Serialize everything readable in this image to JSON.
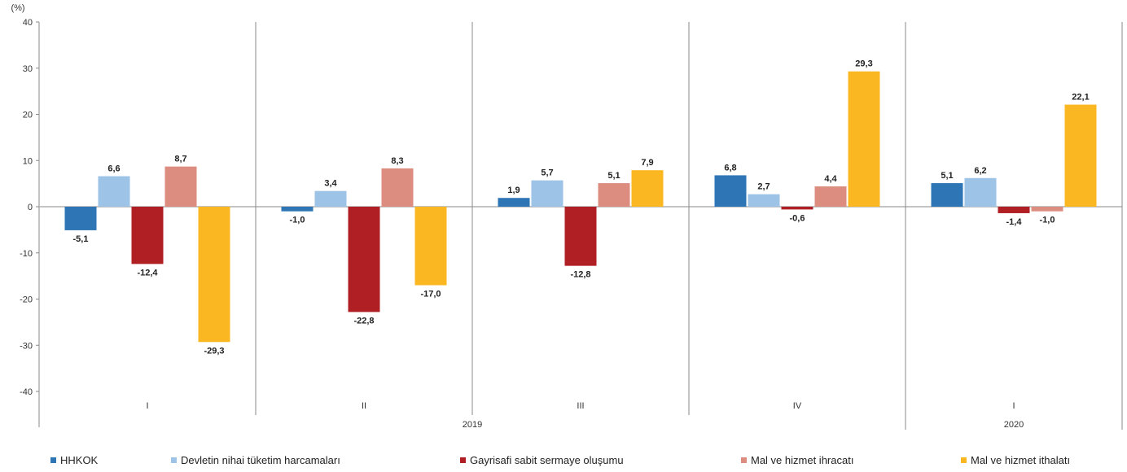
{
  "chart_data": {
    "type": "bar",
    "ylabel": "(%)",
    "ylim": [
      -40,
      40
    ],
    "yticks": [
      40,
      30,
      20,
      10,
      0,
      -10,
      -20,
      -30,
      -40
    ],
    "grid": false,
    "legend_position": "bottom",
    "categories": [
      "I",
      "II",
      "III",
      "IV",
      "I"
    ],
    "years": [
      {
        "label": "2019",
        "span": [
          0,
          3
        ]
      },
      {
        "label": "2020",
        "span": [
          4,
          4
        ]
      }
    ],
    "series": [
      {
        "name": "HHKOK",
        "color": "#2e75b6",
        "values": [
          -5.1,
          -1.0,
          1.9,
          6.8,
          5.1
        ],
        "labels": [
          "-5,1",
          "-1,0",
          "1,9",
          "6,8",
          "5,1"
        ]
      },
      {
        "name": "Devletin nihai tüketim harcamaları",
        "color": "#9dc3e6",
        "values": [
          6.6,
          3.4,
          5.7,
          2.7,
          6.2
        ],
        "labels": [
          "6,6",
          "3,4",
          "5,7",
          "2,7",
          "6,2"
        ]
      },
      {
        "name": "Gayrisafi sabit sermaye oluşumu",
        "color": "#b01f24",
        "values": [
          -12.4,
          -22.8,
          -12.8,
          -0.6,
          -1.4
        ],
        "labels": [
          "-12,4",
          "-22,8",
          "-12,8",
          "-0,6",
          "-1,4"
        ]
      },
      {
        "name": "Mal ve hizmet ihracatı",
        "color": "#dd8d80",
        "values": [
          8.7,
          8.3,
          5.1,
          4.4,
          -1.0
        ],
        "labels": [
          "8,7",
          "8,3",
          "5,1",
          "4,4",
          "-1,0"
        ]
      },
      {
        "name": "Mal ve hizmet ithalatı",
        "color": "#fbb721",
        "values": [
          -29.3,
          -17.0,
          7.9,
          29.3,
          22.1
        ],
        "labels": [
          "-29,3",
          "-17,0",
          "7,9",
          "29,3",
          "22,1"
        ]
      }
    ]
  }
}
